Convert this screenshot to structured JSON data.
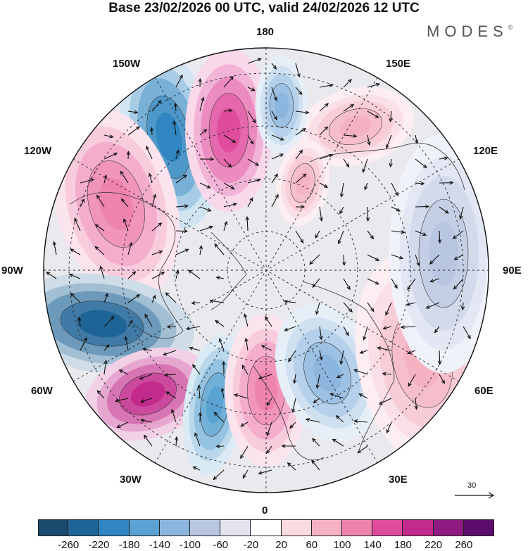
{
  "title": "Base 23/02/2026 00 UTC, valid 24/02/2026 12 UTC",
  "brand": "MODES",
  "brand_mark": "©",
  "longitude_labels": {
    "top": "180",
    "bottom": "0",
    "left": "90W",
    "right": "90E",
    "upper_left": "150W",
    "upper_right": "150E",
    "mid_upper_left": "120W",
    "mid_upper_right": "120E",
    "lower_left": "60W",
    "lower_right": "60E",
    "bottom_left": "30W",
    "bottom_right": "30E"
  },
  "reference_vector": {
    "label": "30"
  },
  "colorbar": {
    "ticks": [
      "-260",
      "-220",
      "-180",
      "-140",
      "-100",
      "-60",
      "-20",
      "20",
      "60",
      "100",
      "140",
      "180",
      "220",
      "260"
    ],
    "colors": [
      "#1b4a6e",
      "#1e6497",
      "#2f86c0",
      "#5aa2d1",
      "#8cb6de",
      "#b9c6e2",
      "#e2e3ef",
      "#ffffff",
      "#f9dbe0",
      "#f4b2c3",
      "#ee83ad",
      "#e04c9d",
      "#c22a8c",
      "#8e1a82",
      "#5a0d6a"
    ]
  },
  "anomaly_blobs": [
    {
      "name": "blob-pacific-low",
      "value": -190,
      "color": "#2f86c0"
    },
    {
      "name": "blob-bering-high",
      "value": 170,
      "color": "#e04c9d"
    },
    {
      "name": "blob-canada-high",
      "value": 150,
      "color": "#ee83ad"
    },
    {
      "name": "blob-labrador-low",
      "value": -250,
      "color": "#1e6497"
    },
    {
      "name": "blob-atlantic-high",
      "value": 200,
      "color": "#c22a8c"
    },
    {
      "name": "blob-atlantic-low",
      "value": -150,
      "color": "#5aa2d1"
    },
    {
      "name": "blob-europe-high",
      "value": 150,
      "color": "#ee83ad"
    },
    {
      "name": "blob-scandinavia-low",
      "value": -130,
      "color": "#8cb6de"
    },
    {
      "name": "blob-east-siberia-high",
      "value": 130,
      "color": "#f4b2c3"
    },
    {
      "name": "blob-chukchi-low",
      "value": -110,
      "color": "#8cb6de"
    },
    {
      "name": "blob-siberia-high",
      "value": 110,
      "color": "#f4b2c3"
    },
    {
      "name": "blob-central-asia-high",
      "value": 90,
      "color": "#f4b2c3"
    },
    {
      "name": "blob-east-asia-low",
      "value": -70,
      "color": "#b9c6e2"
    }
  ]
}
